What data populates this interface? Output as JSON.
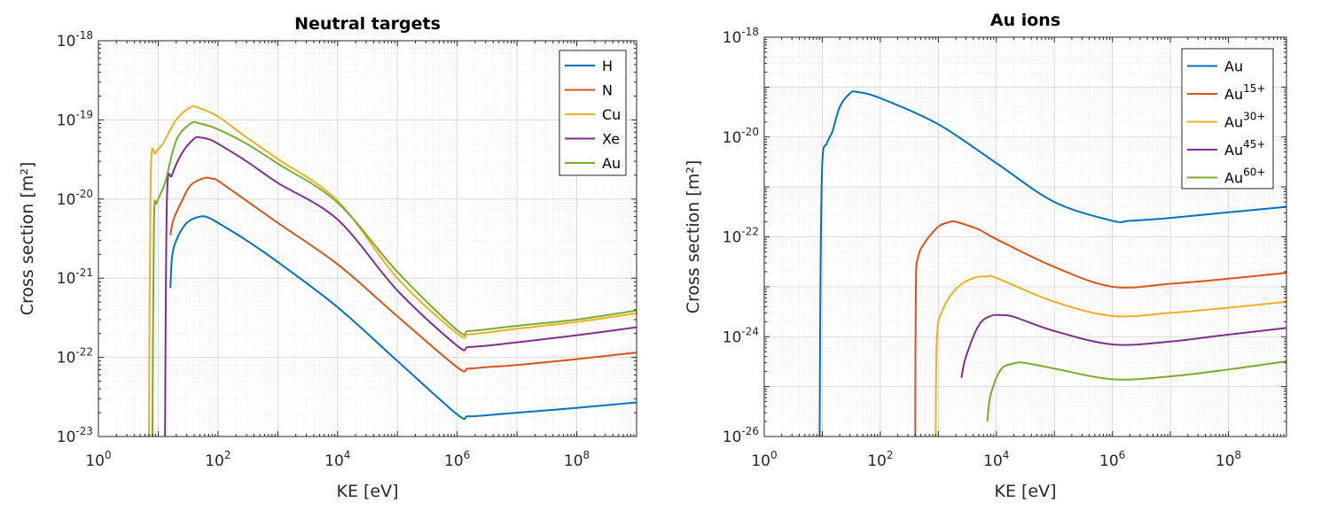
{
  "colors": {
    "blue": "#0072BD",
    "orange": "#D95319",
    "yellow": "#EDB120",
    "purple": "#7E2F8E",
    "green": "#77AC30",
    "axis": "#262626",
    "grid": "#d9d9d9"
  },
  "chart_data": [
    {
      "type": "line",
      "title": "Neutral targets",
      "xlabel": "KE [eV]",
      "ylabel": "Cross section [m²]",
      "xscale": "log",
      "yscale": "log",
      "xlim": [
        1,
        1000000000
      ],
      "ylim": [
        1e-23,
        1e-18
      ],
      "grid": "major and minor",
      "legend_location": "top-right",
      "x_ticks": [
        {
          "value": 1,
          "base": "10",
          "exp": "0"
        },
        {
          "value": 100,
          "base": "10",
          "exp": "2"
        },
        {
          "value": 10000,
          "base": "10",
          "exp": "4"
        },
        {
          "value": 1000000,
          "base": "10",
          "exp": "6"
        },
        {
          "value": 100000000,
          "base": "10",
          "exp": "8"
        }
      ],
      "y_ticks": [
        {
          "value": 1e-23,
          "base": "10",
          "exp": "-23"
        },
        {
          "value": 1e-22,
          "base": "10",
          "exp": "-22"
        },
        {
          "value": 1e-21,
          "base": "10",
          "exp": "-21"
        },
        {
          "value": 1e-20,
          "base": "10",
          "exp": "-20"
        },
        {
          "value": 1e-19,
          "base": "10",
          "exp": "-19"
        },
        {
          "value": 1e-18,
          "base": "10",
          "exp": "-18"
        }
      ],
      "series": [
        {
          "name": "H",
          "sup": "",
          "color": "#0072BD",
          "points": [
            [
              16,
              7.5e-22
            ],
            [
              17,
              1.8e-21
            ],
            [
              20,
              3e-21
            ],
            [
              30,
              5e-21
            ],
            [
              50,
              6e-21
            ],
            [
              70,
              5.8e-21
            ],
            [
              100,
              5e-21
            ],
            [
              300,
              3e-21
            ],
            [
              1000,
              1.6e-21
            ],
            [
              10000,
              4.3e-22
            ],
            [
              100000,
              9e-23
            ],
            [
              1000000,
              1.9e-23
            ],
            [
              1500000,
              1.8e-23
            ],
            [
              3000000,
              1.85e-23
            ],
            [
              10000000,
              2e-23
            ],
            [
              100000000,
              2.3e-23
            ],
            [
              1000000000,
              2.7e-23
            ]
          ]
        },
        {
          "name": "N",
          "sup": "",
          "color": "#D95319",
          "points": [
            [
              16,
              3.5e-21
            ],
            [
              18,
              5.5e-21
            ],
            [
              25,
              9.5e-21
            ],
            [
              35,
              1.5e-20
            ],
            [
              60,
              1.85e-20
            ],
            [
              80,
              1.8e-20
            ],
            [
              100,
              1.7e-20
            ],
            [
              300,
              9.5e-21
            ],
            [
              1000,
              5e-21
            ],
            [
              10000,
              1.5e-21
            ],
            [
              100000,
              3.3e-22
            ],
            [
              1000000,
              7.5e-23
            ],
            [
              1500000,
              7.2e-23
            ],
            [
              3000000,
              7.5e-23
            ],
            [
              10000000,
              8e-23
            ],
            [
              100000000,
              9.5e-23
            ],
            [
              1000000000,
              1.15e-22
            ]
          ]
        },
        {
          "name": "Cu",
          "sup": "",
          "color": "#EDB120",
          "points": [
            [
              7,
              1e-23
            ],
            [
              7.5,
              2e-20
            ],
            [
              9,
              3.8e-20
            ],
            [
              12,
              5e-20
            ],
            [
              20,
              1e-19
            ],
            [
              35,
              1.45e-19
            ],
            [
              50,
              1.4e-19
            ],
            [
              100,
              1.1e-19
            ],
            [
              300,
              6e-20
            ],
            [
              1000,
              3.2e-20
            ],
            [
              10000,
              9.5e-21
            ],
            [
              100000,
              1e-21
            ],
            [
              1000000,
              2e-22
            ],
            [
              1500000,
              1.95e-22
            ],
            [
              3000000,
              2.05e-22
            ],
            [
              10000000,
              2.3e-22
            ],
            [
              100000000,
              2.8e-22
            ],
            [
              1000000000,
              3.6e-22
            ]
          ]
        },
        {
          "name": "Xe",
          "sup": "",
          "color": "#7E2F8E",
          "points": [
            [
              13,
              1e-23
            ],
            [
              14,
              1e-20
            ],
            [
              17,
              2e-20
            ],
            [
              25,
              3.8e-20
            ],
            [
              40,
              5.8e-20
            ],
            [
              50,
              6e-20
            ],
            [
              70,
              5.7e-20
            ],
            [
              100,
              5e-20
            ],
            [
              300,
              3e-20
            ],
            [
              1000,
              1.6e-20
            ],
            [
              10000,
              5.5e-21
            ],
            [
              100000,
              7e-22
            ],
            [
              1000000,
              1.4e-22
            ],
            [
              1500000,
              1.35e-22
            ],
            [
              3000000,
              1.4e-22
            ],
            [
              10000000,
              1.55e-22
            ],
            [
              100000000,
              1.9e-22
            ],
            [
              1000000000,
              2.4e-22
            ]
          ]
        },
        {
          "name": "Au",
          "sup": "",
          "color": "#77AC30",
          "points": [
            [
              8,
              1e-23
            ],
            [
              8.5,
              5e-21
            ],
            [
              9.5,
              9e-21
            ],
            [
              13,
              1.6e-20
            ],
            [
              20,
              5.5e-20
            ],
            [
              35,
              9e-20
            ],
            [
              50,
              9e-20
            ],
            [
              100,
              7.6e-20
            ],
            [
              300,
              5e-20
            ],
            [
              1000,
              2.8e-20
            ],
            [
              10000,
              9e-21
            ],
            [
              100000,
              1.2e-21
            ],
            [
              1000000,
              2.2e-22
            ],
            [
              1500000,
              2.15e-22
            ],
            [
              3000000,
              2.25e-22
            ],
            [
              10000000,
              2.5e-22
            ],
            [
              100000000,
              3e-22
            ],
            [
              1000000000,
              3.9e-22
            ]
          ]
        }
      ]
    },
    {
      "type": "line",
      "title": "Au ions",
      "xlabel": "KE [eV]",
      "ylabel": "Cross section [m²]",
      "xscale": "log",
      "yscale": "log",
      "xlim": [
        1,
        1000000000
      ],
      "ylim": [
        1e-26,
        1e-18
      ],
      "grid": "major and minor",
      "legend_location": "top-right",
      "x_ticks": [
        {
          "value": 1,
          "base": "10",
          "exp": "0"
        },
        {
          "value": 100,
          "base": "10",
          "exp": "2"
        },
        {
          "value": 10000,
          "base": "10",
          "exp": "4"
        },
        {
          "value": 1000000,
          "base": "10",
          "exp": "6"
        },
        {
          "value": 100000000,
          "base": "10",
          "exp": "8"
        }
      ],
      "y_ticks": [
        {
          "value": 1e-26,
          "base": "10",
          "exp": "-26"
        },
        {
          "value": 1e-24,
          "base": "10",
          "exp": "-24"
        },
        {
          "value": 1e-22,
          "base": "10",
          "exp": "-22"
        },
        {
          "value": 1e-20,
          "base": "10",
          "exp": "-20"
        },
        {
          "value": 1e-18,
          "base": "10",
          "exp": "-18"
        }
      ],
      "series": [
        {
          "name": "Au",
          "sup": "",
          "color": "#0072BD",
          "points": [
            [
              9,
              1e-26
            ],
            [
              9.3,
              1e-23
            ],
            [
              10,
              3e-21
            ],
            [
              12,
              7.5e-21
            ],
            [
              15,
              1.3e-20
            ],
            [
              20,
              4e-20
            ],
            [
              30,
              7.5e-20
            ],
            [
              40,
              8e-20
            ],
            [
              100,
              6e-20
            ],
            [
              1000,
              1.8e-20
            ],
            [
              10000,
              3e-21
            ],
            [
              100000,
              5e-22
            ],
            [
              1000000,
              2.1e-22
            ],
            [
              2000000,
              2.1e-22
            ],
            [
              10000000,
              2.4e-22
            ],
            [
              100000000,
              3.1e-22
            ],
            [
              1000000000,
              4e-22
            ]
          ]
        },
        {
          "name": "Au",
          "sup": "15+",
          "color": "#D95319",
          "points": [
            [
              400,
              1e-26
            ],
            [
              410,
              1e-23
            ],
            [
              450,
              4e-23
            ],
            [
              600,
              8e-23
            ],
            [
              1000,
              1.6e-22
            ],
            [
              1500,
              1.95e-22
            ],
            [
              2000,
              2e-22
            ],
            [
              5000,
              1.4e-22
            ],
            [
              10000,
              9e-23
            ],
            [
              100000,
              2.5e-23
            ],
            [
              1000000,
              1e-23
            ],
            [
              10000000,
              1.15e-23
            ],
            [
              100000000,
              1.45e-23
            ],
            [
              1000000000,
              1.9e-23
            ]
          ]
        },
        {
          "name": "Au",
          "sup": "30+",
          "color": "#EDB120",
          "points": [
            [
              900,
              1e-26
            ],
            [
              950,
              1e-24
            ],
            [
              1200,
              3.5e-24
            ],
            [
              2000,
              9e-24
            ],
            [
              4000,
              1.5e-23
            ],
            [
              7000,
              1.6e-23
            ],
            [
              10000,
              1.5e-23
            ],
            [
              100000,
              5e-24
            ],
            [
              1000000,
              2.6e-24
            ],
            [
              10000000,
              3e-24
            ],
            [
              100000000,
              3.8e-24
            ],
            [
              1000000000,
              5e-24
            ]
          ]
        },
        {
          "name": "Au",
          "sup": "45+",
          "color": "#7E2F8E",
          "points": [
            [
              2500,
              1.5e-25
            ],
            [
              3000,
              4e-25
            ],
            [
              5000,
              1.7e-24
            ],
            [
              8000,
              2.6e-24
            ],
            [
              12000,
              2.7e-24
            ],
            [
              20000,
              2.5e-24
            ],
            [
              100000,
              1.3e-24
            ],
            [
              1000000,
              7e-25
            ],
            [
              10000000,
              8e-25
            ],
            [
              100000000,
              1.1e-24
            ],
            [
              1000000000,
              1.5e-24
            ]
          ]
        },
        {
          "name": "Au",
          "sup": "60+",
          "color": "#77AC30",
          "points": [
            [
              7000,
              2e-26
            ],
            [
              8000,
              7e-26
            ],
            [
              12000,
              2.2e-25
            ],
            [
              20000,
              2.9e-25
            ],
            [
              30000,
              3e-25
            ],
            [
              100000,
              2.3e-25
            ],
            [
              1000000,
              1.4e-25
            ],
            [
              10000000,
              1.6e-25
            ],
            [
              100000000,
              2.2e-25
            ],
            [
              1000000000,
              3.2e-25
            ]
          ]
        }
      ]
    }
  ]
}
